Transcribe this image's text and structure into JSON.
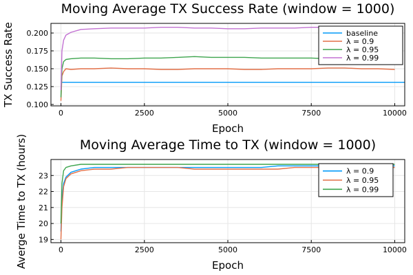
{
  "chart_data": [
    {
      "type": "line",
      "title": "Moving Average TX Success Rate (window = 1000)",
      "xlabel": "Epoch",
      "ylabel": "TX Success Rate",
      "xlim": [
        -300,
        10300
      ],
      "ylim": [
        0.098,
        0.2135
      ],
      "xticks": [
        0,
        2500,
        5000,
        7500,
        10000
      ],
      "xtick_labels": [
        "0",
        "2500",
        "5000",
        "7500",
        "10000"
      ],
      "yticks": [
        0.1,
        0.125,
        0.15,
        0.175,
        0.2
      ],
      "ytick_labels": [
        "0.100",
        "0.125",
        "0.150",
        "0.175",
        "0.200"
      ],
      "grid": true,
      "legend_position": "top-right",
      "series": [
        {
          "name": "baseline",
          "color": "#009af9",
          "x": [
            0,
            10300
          ],
          "y": [
            0.131,
            0.131
          ]
        },
        {
          "name": "λ = 0.9",
          "color": "#e26f46",
          "x": [
            0,
            30,
            80,
            150,
            300,
            600,
            1000,
            1500,
            2000,
            2500,
            3000,
            3500,
            4000,
            4500,
            5000,
            5500,
            6000,
            6500,
            7000,
            7500,
            8000,
            8500,
            9000,
            9500,
            10000
          ],
          "y": [
            0.105,
            0.14,
            0.146,
            0.15,
            0.149,
            0.15,
            0.15,
            0.151,
            0.15,
            0.15,
            0.149,
            0.149,
            0.15,
            0.15,
            0.15,
            0.149,
            0.149,
            0.15,
            0.15,
            0.15,
            0.151,
            0.151,
            0.15,
            0.15,
            0.149
          ]
        },
        {
          "name": "λ = 0.95",
          "color": "#3da44d",
          "x": [
            0,
            30,
            80,
            150,
            300,
            600,
            1000,
            1500,
            2000,
            2500,
            3000,
            3500,
            4000,
            4500,
            5000,
            5500,
            6000,
            6500,
            7000,
            7500,
            8000,
            8500,
            9000,
            9500,
            10000
          ],
          "y": [
            0.11,
            0.15,
            0.16,
            0.163,
            0.164,
            0.165,
            0.165,
            0.164,
            0.164,
            0.165,
            0.165,
            0.166,
            0.167,
            0.166,
            0.166,
            0.166,
            0.165,
            0.165,
            0.165,
            0.165,
            0.164,
            0.164,
            0.165,
            0.165,
            0.164
          ]
        },
        {
          "name": "λ = 0.99",
          "color": "#c271d2",
          "x": [
            0,
            30,
            80,
            150,
            300,
            600,
            1000,
            1500,
            2000,
            2500,
            3000,
            3500,
            4000,
            4500,
            5000,
            5500,
            6000,
            6500,
            7000,
            7500,
            8000,
            8500,
            9000,
            9500,
            10000
          ],
          "y": [
            0.12,
            0.175,
            0.19,
            0.197,
            0.201,
            0.205,
            0.206,
            0.207,
            0.207,
            0.207,
            0.208,
            0.208,
            0.207,
            0.207,
            0.206,
            0.206,
            0.207,
            0.207,
            0.207,
            0.208,
            0.208,
            0.208,
            0.207,
            0.207,
            0.207
          ]
        }
      ]
    },
    {
      "type": "line",
      "title": "Moving Average Time to TX (window = 1000)",
      "xlabel": "Epoch",
      "ylabel": "Averge Time to TX (hours)",
      "xlim": [
        -300,
        10300
      ],
      "ylim": [
        18.8,
        24.0
      ],
      "xticks": [
        0,
        2500,
        5000,
        7500,
        10000
      ],
      "xtick_labels": [
        "0",
        "2500",
        "5000",
        "7500",
        "10000"
      ],
      "yticks": [
        19,
        20,
        21,
        22,
        23
      ],
      "ytick_labels": [
        "19",
        "20",
        "21",
        "22",
        "23"
      ],
      "grid": true,
      "legend_position": "top-right",
      "series": [
        {
          "name": "λ = 0.9",
          "color": "#009af9",
          "x": [
            0,
            30,
            80,
            150,
            300,
            600,
            1000,
            1500,
            2000,
            2500,
            3000,
            3500,
            4000,
            4500,
            5000,
            5500,
            6000,
            6500,
            7000,
            7500,
            8000,
            8500,
            9000,
            9500,
            10000
          ],
          "y": [
            19.5,
            21.5,
            22.5,
            22.9,
            23.2,
            23.4,
            23.5,
            23.5,
            23.5,
            23.5,
            23.5,
            23.5,
            23.5,
            23.5,
            23.5,
            23.5,
            23.5,
            23.6,
            23.6,
            23.6,
            23.6,
            23.6,
            23.6,
            23.6,
            23.6
          ]
        },
        {
          "name": "λ = 0.95",
          "color": "#e26f46",
          "x": [
            0,
            30,
            80,
            150,
            300,
            600,
            1000,
            1500,
            2000,
            2500,
            3000,
            3500,
            4000,
            4500,
            5000,
            5500,
            6000,
            6500,
            7000,
            7500,
            8000,
            8500,
            9000,
            9500,
            10000
          ],
          "y": [
            19.0,
            21.0,
            22.3,
            22.8,
            23.1,
            23.3,
            23.4,
            23.4,
            23.5,
            23.5,
            23.5,
            23.5,
            23.4,
            23.4,
            23.4,
            23.4,
            23.4,
            23.4,
            23.5,
            23.5,
            23.5,
            23.5,
            23.5,
            23.5,
            23.5
          ]
        },
        {
          "name": "λ = 0.99",
          "color": "#3da44d",
          "x": [
            0,
            30,
            80,
            150,
            300,
            600,
            1000,
            1500,
            2000,
            2500,
            3000,
            3500,
            4000,
            4500,
            5000,
            5500,
            6000,
            6500,
            7000,
            7500,
            8000,
            8500,
            9000,
            9500,
            10000
          ],
          "y": [
            20.0,
            22.5,
            23.3,
            23.5,
            23.6,
            23.7,
            23.7,
            23.7,
            23.7,
            23.7,
            23.7,
            23.7,
            23.7,
            23.7,
            23.7,
            23.7,
            23.7,
            23.7,
            23.7,
            23.7,
            23.7,
            23.7,
            23.7,
            23.7,
            23.7
          ]
        }
      ]
    }
  ]
}
